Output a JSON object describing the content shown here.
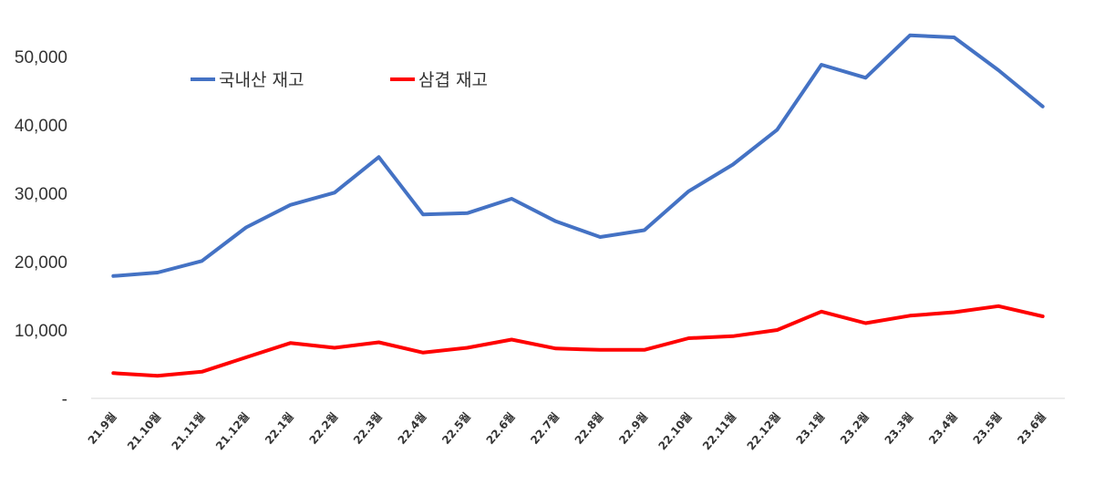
{
  "chart_data": {
    "type": "line",
    "title": "",
    "xlabel": "",
    "ylabel": "",
    "categories": [
      "21.9월",
      "21.10월",
      "21.11월",
      "21.12월",
      "22.1월",
      "22.2월",
      "22.3월",
      "22.4월",
      "22.5월",
      "22.6월",
      "22.7월",
      "22.8월",
      "22.9월",
      "22.10월",
      "22.11월",
      "22.12월",
      "23.1월",
      "23.2월",
      "23.3월",
      "23.4월",
      "23.5월",
      "23.6월"
    ],
    "ylim": [
      0,
      50000
    ],
    "yticks": [
      0,
      10000,
      20000,
      30000,
      40000,
      50000
    ],
    "ytick_labels": [
      "-",
      "10,000",
      "20,000",
      "30,000",
      "40,000",
      "50,000"
    ],
    "grid": false,
    "legend_position": "top-left",
    "series": [
      {
        "name": "국내산 재고",
        "color": "#4472C4",
        "values": [
          17900,
          18400,
          20100,
          25000,
          28300,
          30100,
          35300,
          26900,
          27100,
          29200,
          25900,
          23600,
          24600,
          30300,
          34200,
          39300,
          48800,
          46900,
          53100,
          52800,
          48000,
          42700
        ]
      },
      {
        "name": "삼겹 재고",
        "color": "#FF0000",
        "values": [
          3700,
          3300,
          3900,
          6000,
          8100,
          7400,
          8200,
          6700,
          7400,
          8600,
          7300,
          7100,
          7100,
          8800,
          9100,
          10000,
          12700,
          11000,
          12100,
          12600,
          13500,
          12000
        ]
      }
    ]
  }
}
